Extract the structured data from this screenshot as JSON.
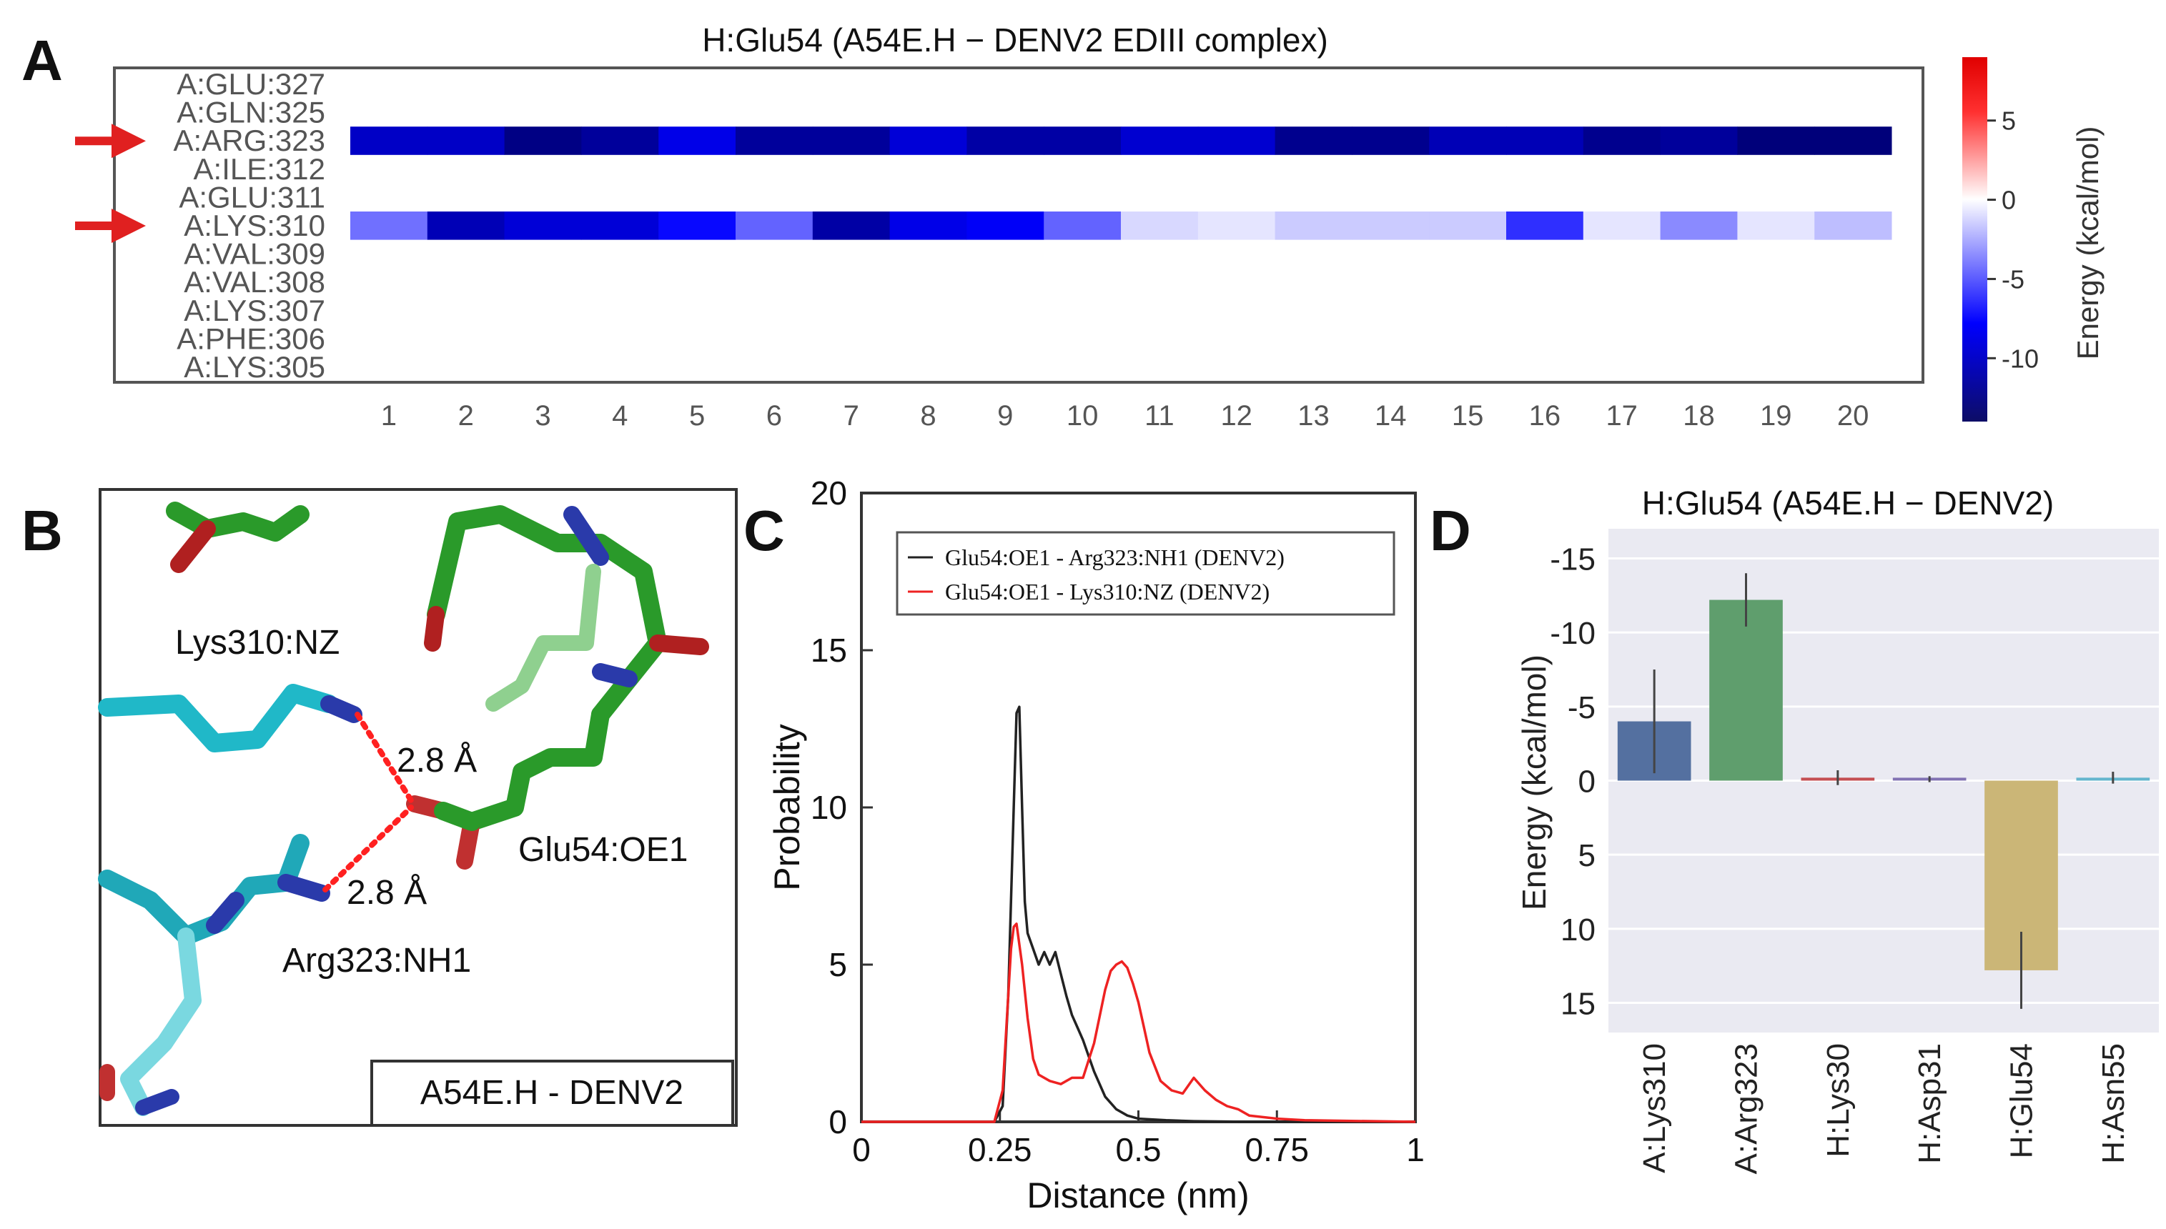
{
  "panel_labels": {
    "a": "A",
    "b": "B",
    "c": "C",
    "d": "D"
  },
  "chart_data": [
    {
      "type": "heatmap",
      "title": "H:Glu54 (A54E.H − DENV2 EDIII complex)",
      "rows": [
        "A:GLU:327",
        "A:GLN:325",
        "A:ARG:323",
        "A:ILE:312",
        "A:GLU:311",
        "A:LYS:310",
        "A:VAL:309",
        "A:VAL:308",
        "A:LYS:307",
        "A:PHE:306",
        "A:LYS:305"
      ],
      "columns": [
        "1",
        "2",
        "3",
        "4",
        "5",
        "6",
        "7",
        "8",
        "9",
        "10",
        "11",
        "12",
        "13",
        "14",
        "15",
        "16",
        "17",
        "18",
        "19",
        "20"
      ],
      "values": {
        "A:ARG:323": [
          -11.5,
          -11.5,
          -13.5,
          -12.8,
          -10.5,
          -12.8,
          -12.8,
          -11,
          -12.5,
          -12.5,
          -11.2,
          -11.2,
          -13.2,
          -13.2,
          -12,
          -12,
          -13.2,
          -12.8,
          -13.8,
          -13.8
        ],
        "A:LYS:310": [
          -5.5,
          -12,
          -11,
          -11,
          -9.5,
          -6,
          -12.5,
          -10.5,
          -10,
          -6,
          -1.5,
          -1,
          -2,
          -2,
          -2,
          -8,
          -1,
          -4.5,
          -1,
          -2.5
        ]
      },
      "highlighted_rows": [
        "A:ARG:323",
        "A:LYS:310"
      ],
      "colorbar": {
        "label": "Energy (kcal/mol)",
        "range": [
          -14,
          9
        ],
        "ticks": [
          "5",
          "0",
          "-5",
          "-10"
        ]
      }
    },
    {
      "type": "line",
      "title": "",
      "xlabel": "Distance (nm)",
      "ylabel": "Probability",
      "xlim": [
        0,
        1
      ],
      "ylim": [
        0,
        20
      ],
      "xticks": [
        "0",
        "0.25",
        "0.5",
        "0.75",
        "1"
      ],
      "yticks": [
        "0",
        "5",
        "10",
        "15",
        "20"
      ],
      "series": [
        {
          "name": "Glu54:OE1 - Arg323:NH1 (DENV2)",
          "color": "#222222",
          "x": [
            0,
            0.24,
            0.255,
            0.265,
            0.275,
            0.28,
            0.285,
            0.29,
            0.295,
            0.3,
            0.31,
            0.32,
            0.33,
            0.34,
            0.35,
            0.36,
            0.37,
            0.38,
            0.39,
            0.4,
            0.42,
            0.44,
            0.46,
            0.48,
            0.5,
            0.55,
            0.6,
            0.7,
            1
          ],
          "y": [
            0,
            0,
            0.5,
            4,
            10,
            13,
            13.2,
            10,
            7,
            6,
            5.5,
            5.0,
            5.4,
            5.0,
            5.4,
            4.7,
            4.0,
            3.4,
            3.0,
            2.6,
            1.6,
            0.8,
            0.4,
            0.2,
            0.1,
            0.05,
            0.02,
            0,
            0
          ]
        },
        {
          "name": "Glu54:OE1 - Lys310:NZ (DENV2)",
          "color": "#ee2222",
          "x": [
            0,
            0.24,
            0.255,
            0.265,
            0.27,
            0.275,
            0.28,
            0.29,
            0.3,
            0.31,
            0.32,
            0.34,
            0.36,
            0.38,
            0.4,
            0.42,
            0.44,
            0.45,
            0.46,
            0.47,
            0.48,
            0.49,
            0.5,
            0.51,
            0.52,
            0.54,
            0.56,
            0.58,
            0.6,
            0.62,
            0.64,
            0.66,
            0.68,
            0.7,
            0.75,
            0.8,
            1
          ],
          "y": [
            0,
            0,
            1,
            4,
            5.5,
            6.2,
            6.3,
            5.0,
            3.3,
            2.0,
            1.5,
            1.3,
            1.2,
            1.4,
            1.4,
            2.5,
            4.2,
            4.8,
            5.0,
            5.1,
            4.9,
            4.4,
            3.8,
            3.0,
            2.2,
            1.3,
            1.0,
            0.9,
            1.4,
            1.0,
            0.7,
            0.5,
            0.4,
            0.2,
            0.1,
            0.05,
            0
          ]
        }
      ]
    },
    {
      "type": "bar",
      "title": "H:Glu54 (A54E.H − DENV2)",
      "xlabel": "",
      "ylabel": "Energy (kcal/mol)",
      "categories": [
        "A:Lys310",
        "A:Arg323",
        "H:Lys30",
        "H:Asp31",
        "H:Glu54",
        "H:Asn55"
      ],
      "values": [
        -4,
        -12.2,
        -0.2,
        -0.1,
        12.8,
        -0.2
      ],
      "errors": [
        3.5,
        1.8,
        0.5,
        0.2,
        2.6,
        0.4
      ],
      "colors": [
        "#5470a0",
        "#5f9e6d",
        "#c44e52",
        "#8172b3",
        "#cbb677",
        "#64b5cd"
      ],
      "ylim": [
        -17,
        17
      ],
      "yaxis_inverted": true,
      "yticks": [
        "-15",
        "-10",
        "-5",
        "0",
        "5",
        "10",
        "15"
      ]
    }
  ],
  "panel_b": {
    "labels": [
      "Lys310:NZ",
      "Glu54:OE1",
      "Arg323:NH1"
    ],
    "distances": [
      "2.8 Å",
      "2.8 Å"
    ],
    "box_label": "A54E.H - DENV2"
  }
}
